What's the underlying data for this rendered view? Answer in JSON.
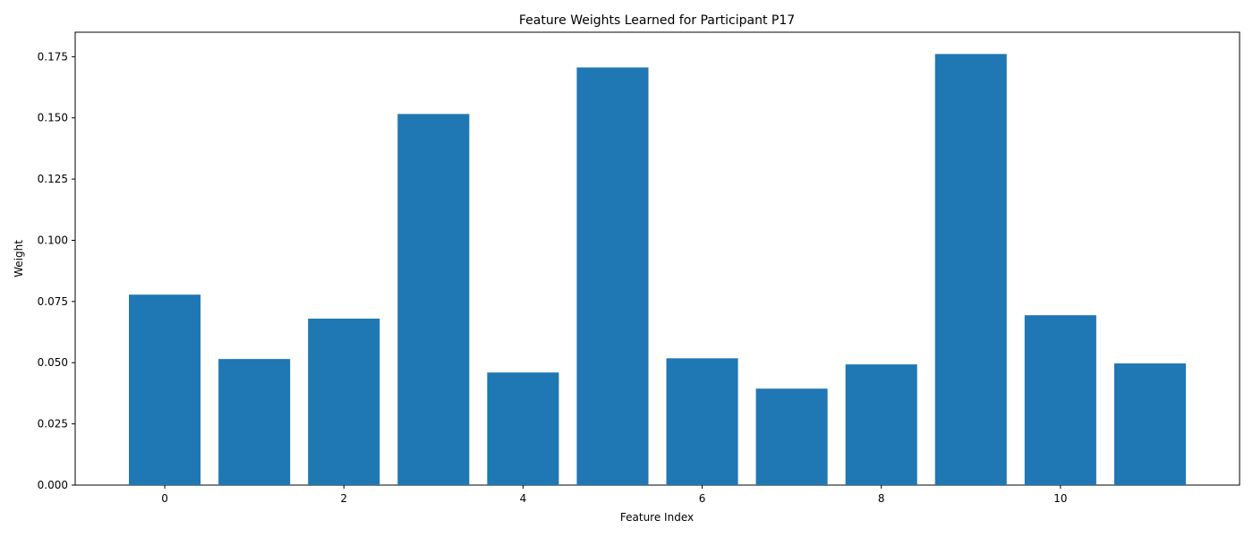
{
  "chart_data": {
    "type": "bar",
    "title": "Feature Weights Learned for Participant P17",
    "xlabel": "Feature Index",
    "ylabel": "Weight",
    "categories": [
      0,
      1,
      2,
      3,
      4,
      5,
      6,
      7,
      8,
      9,
      10,
      11
    ],
    "values": [
      0.0778,
      0.0515,
      0.068,
      0.1516,
      0.046,
      0.1706,
      0.0518,
      0.0394,
      0.0493,
      0.1761,
      0.0694,
      0.0497
    ],
    "bar_color": "#1f77b4",
    "xlim": [
      -1.0,
      12.0
    ],
    "ylim": [
      0,
      0.185
    ],
    "xticks": [
      0,
      2,
      4,
      6,
      8,
      10
    ],
    "xtick_labels": [
      "0",
      "2",
      "4",
      "6",
      "8",
      "10"
    ],
    "yticks": [
      0.0,
      0.025,
      0.05,
      0.075,
      0.1,
      0.125,
      0.15,
      0.175
    ],
    "ytick_labels": [
      "0.000",
      "0.025",
      "0.050",
      "0.075",
      "0.100",
      "0.125",
      "0.150",
      "0.175"
    ],
    "grid": false,
    "legend": false
  }
}
